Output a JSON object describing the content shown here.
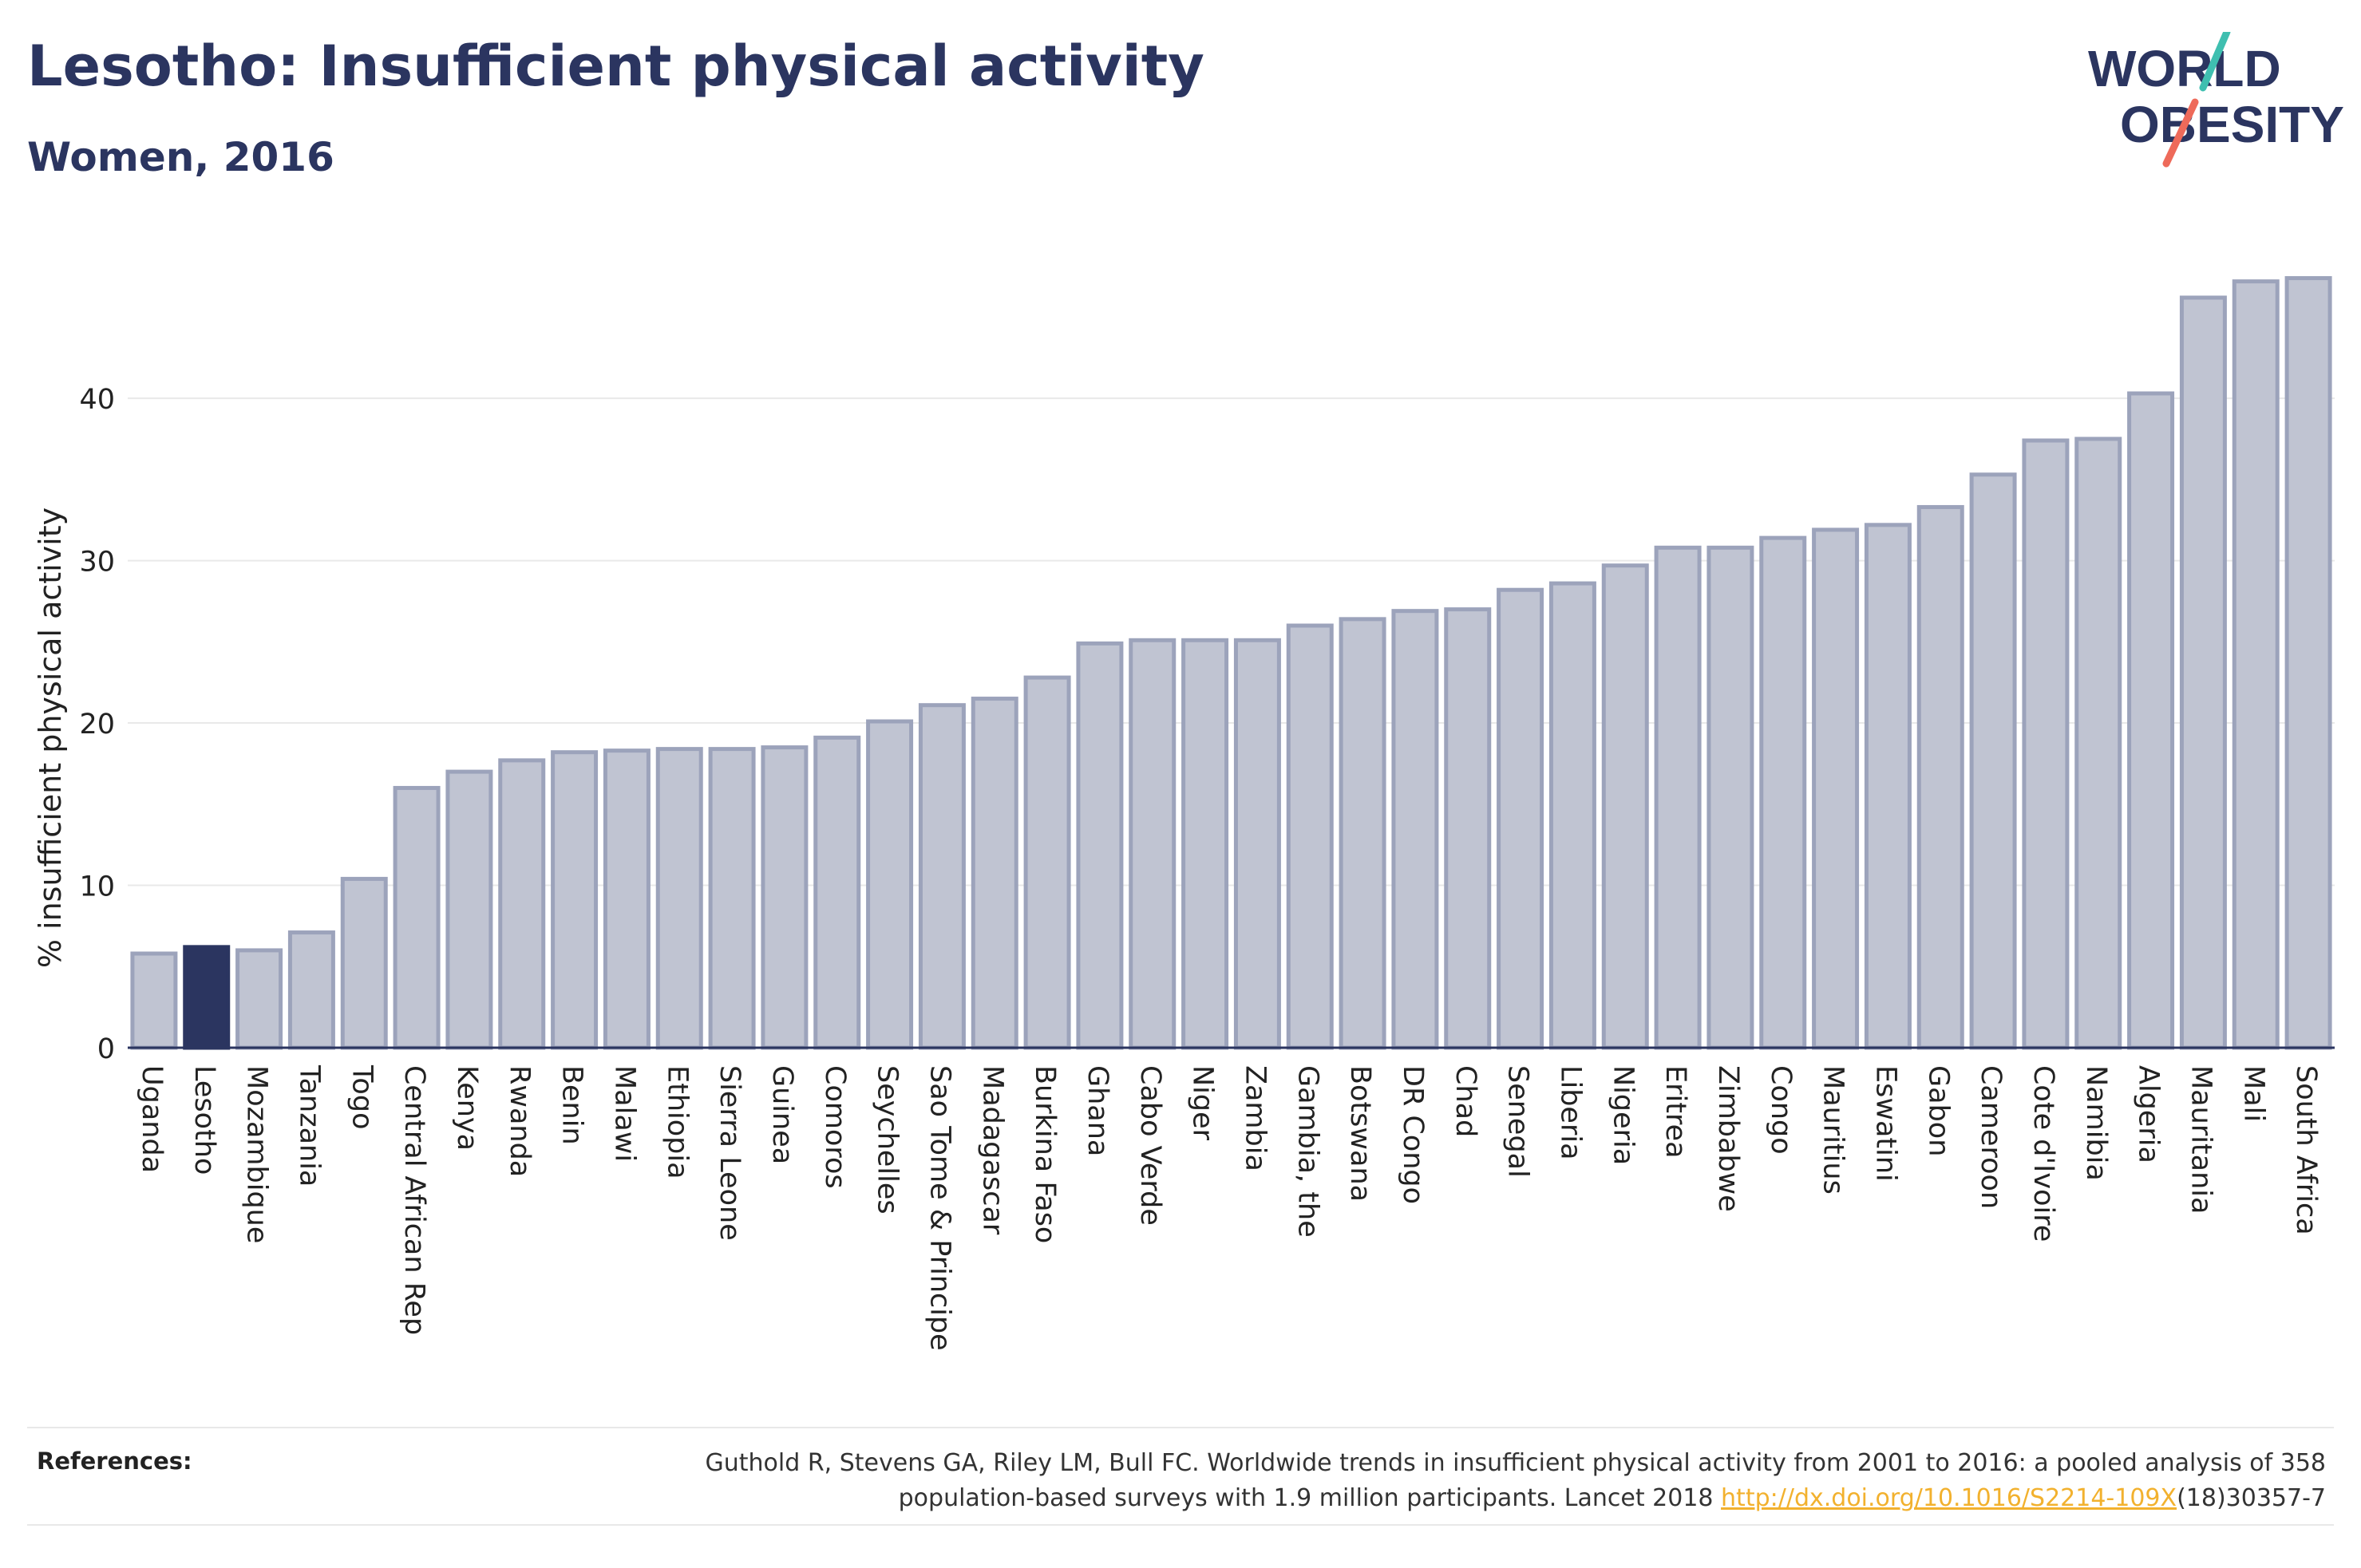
{
  "title": "Lesotho: Insufficient physical activity",
  "subtitle": "Women, 2016",
  "logo": {
    "line1": "WORLD",
    "line2": "OBESITY"
  },
  "references": {
    "label": "References:",
    "text_line1": "Guthold R, Stevens GA, Riley LM, Bull FC. Worldwide trends in insufficient physical activity from 2001 to 2016: a pooled analysis of 358",
    "text_line2": "population-based surveys with 1.9 million participants. Lancet 2018 ",
    "link": "http://dx.doi.org/10.1016/S2214-109X",
    "text_end": "(18)30357-7"
  },
  "colors": {
    "highlight": "#2b3560",
    "bar_fill": "#c0c4d2",
    "bar_stroke": "#9ca3bb",
    "grid": "#e9e9e9",
    "axis": "#2b3560",
    "logo_teal": "#3fbfb0",
    "logo_coral": "#ee6a5a"
  },
  "chart_data": {
    "type": "bar",
    "ylabel": "% insufficient physical activity",
    "xlabel": "",
    "ylim": [
      0,
      49
    ],
    "yticks": [
      0,
      10,
      20,
      30,
      40
    ],
    "grid": true,
    "highlight": "Lesotho",
    "categories": [
      "Uganda",
      "Lesotho",
      "Mozambique",
      "Tanzania",
      "Togo",
      "Central African Rep",
      "Kenya",
      "Rwanda",
      "Benin",
      "Malawi",
      "Ethiopia",
      "Sierra Leone",
      "Guinea",
      "Comoros",
      "Seychelles",
      "Sao Tome & Principe",
      "Madagascar",
      "Burkina Faso",
      "Ghana",
      "Cabo Verde",
      "Niger",
      "Zambia",
      "Gambia, the",
      "Botswana",
      "DR Congo",
      "Chad",
      "Senegal",
      "Liberia",
      "Nigeria",
      "Eritrea",
      "Zimbabwe",
      "Congo",
      "Mauritius",
      "Eswatini",
      "Gabon",
      "Cameroon",
      "Cote d'Ivoire",
      "Namibia",
      "Algeria",
      "Mauritania",
      "Mali",
      "South Africa"
    ],
    "values": [
      5.8,
      6.2,
      6.0,
      7.1,
      10.4,
      16.0,
      17.0,
      17.7,
      18.2,
      18.3,
      18.4,
      18.4,
      18.5,
      19.1,
      20.1,
      21.1,
      21.5,
      22.8,
      24.9,
      25.1,
      25.1,
      25.1,
      26.0,
      26.4,
      26.9,
      27.0,
      28.2,
      28.6,
      29.7,
      30.8,
      30.8,
      31.4,
      31.9,
      32.2,
      33.3,
      35.3,
      37.4,
      37.5,
      40.3,
      46.2,
      47.2,
      47.4
    ]
  }
}
